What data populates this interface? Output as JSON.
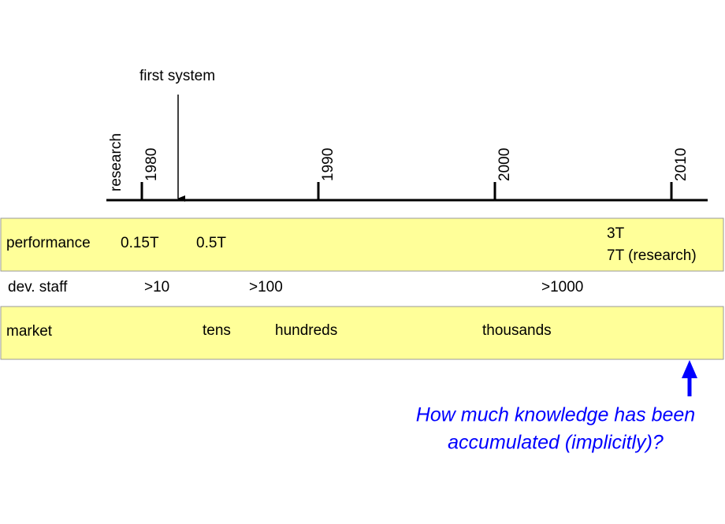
{
  "timeline": {
    "research_label": "research",
    "years": [
      "1980",
      "1990",
      "2000",
      "2010"
    ],
    "first_system": "first system"
  },
  "rows": {
    "performance": {
      "label": "performance",
      "items": [
        "0.15T",
        "0.5T",
        "3T",
        "7T (research)"
      ]
    },
    "dev_staff": {
      "label": "dev. staff",
      "items": [
        ">10",
        ">100",
        ">1000"
      ]
    },
    "market": {
      "label": "market",
      "items": [
        "tens",
        "hundreds",
        "thousands"
      ]
    }
  },
  "question": {
    "line1": "How much knowledge has been",
    "line2": "accumulated (implicitly)?"
  }
}
